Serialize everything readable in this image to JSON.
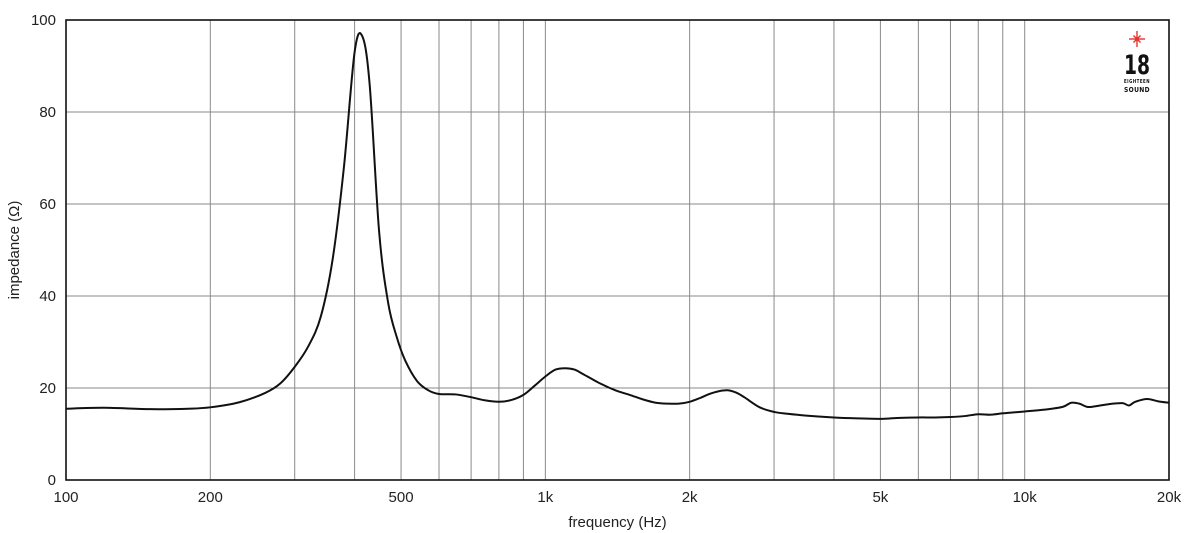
{
  "chart_data": {
    "type": "line",
    "xlabel": "frequency (Hz)",
    "ylabel": "impedance (Ω)",
    "x_scale": "log",
    "xlim": [
      100,
      20000
    ],
    "ylim": [
      0,
      100
    ],
    "grid": true,
    "x_ticks": [
      {
        "value": 100,
        "label": "100"
      },
      {
        "value": 200,
        "label": "200"
      },
      {
        "value": 500,
        "label": "500"
      },
      {
        "value": 1000,
        "label": "1k"
      },
      {
        "value": 2000,
        "label": "2k"
      },
      {
        "value": 5000,
        "label": "5k"
      },
      {
        "value": 10000,
        "label": "10k"
      },
      {
        "value": 20000,
        "label": "20k"
      }
    ],
    "x_gridlines": [
      100,
      200,
      300,
      400,
      500,
      600,
      700,
      800,
      900,
      1000,
      2000,
      3000,
      4000,
      5000,
      6000,
      7000,
      8000,
      9000,
      10000,
      20000
    ],
    "y_ticks": [
      {
        "value": 0,
        "label": "0"
      },
      {
        "value": 20,
        "label": "20"
      },
      {
        "value": 40,
        "label": "40"
      },
      {
        "value": 60,
        "label": "60"
      },
      {
        "value": 80,
        "label": "80"
      },
      {
        "value": 100,
        "label": "100"
      }
    ],
    "series": [
      {
        "x": [
          100,
          120,
          150,
          180,
          200,
          230,
          260,
          280,
          300,
          320,
          340,
          360,
          380,
          400,
          415,
          430,
          450,
          470,
          490,
          510,
          540,
          570,
          600,
          650,
          700,
          750,
          800,
          850,
          900,
          950,
          1000,
          1050,
          1100,
          1150,
          1200,
          1300,
          1400,
          1500,
          1600,
          1700,
          1800,
          1900,
          2000,
          2100,
          2200,
          2300,
          2400,
          2500,
          2600,
          2800,
          3000,
          3200,
          3500,
          4000,
          4500,
          5000,
          5500,
          6000,
          6500,
          7000,
          7500,
          8000,
          8500,
          9000,
          9500,
          10000,
          11000,
          12000,
          12500,
          13000,
          13500,
          14000,
          15000,
          16000,
          16500,
          17000,
          18000,
          19000,
          20000
        ],
        "y": [
          15.5,
          15.7,
          15.4,
          15.5,
          15.8,
          16.9,
          18.9,
          21.0,
          24.6,
          29.0,
          35.5,
          48.0,
          68.0,
          93.0,
          96.5,
          86.0,
          54.0,
          38.5,
          31.0,
          26.0,
          21.5,
          19.5,
          18.7,
          18.6,
          18.0,
          17.3,
          17.0,
          17.4,
          18.5,
          20.5,
          22.5,
          24.0,
          24.3,
          24.0,
          23.0,
          21.0,
          19.5,
          18.5,
          17.5,
          16.8,
          16.6,
          16.6,
          17.0,
          17.8,
          18.7,
          19.3,
          19.5,
          19.0,
          18.0,
          15.8,
          14.8,
          14.4,
          14.0,
          13.6,
          13.4,
          13.3,
          13.5,
          13.6,
          13.6,
          13.7,
          13.9,
          14.3,
          14.2,
          14.5,
          14.7,
          14.9,
          15.3,
          15.9,
          16.8,
          16.6,
          15.9,
          16.0,
          16.5,
          16.7,
          16.2,
          17.0,
          17.6,
          17.1,
          16.8
        ]
      }
    ]
  },
  "logo": {
    "number": "18",
    "line1": "EIGHTEEN",
    "line2": "SOUND",
    "star_color": "#e3342f"
  }
}
